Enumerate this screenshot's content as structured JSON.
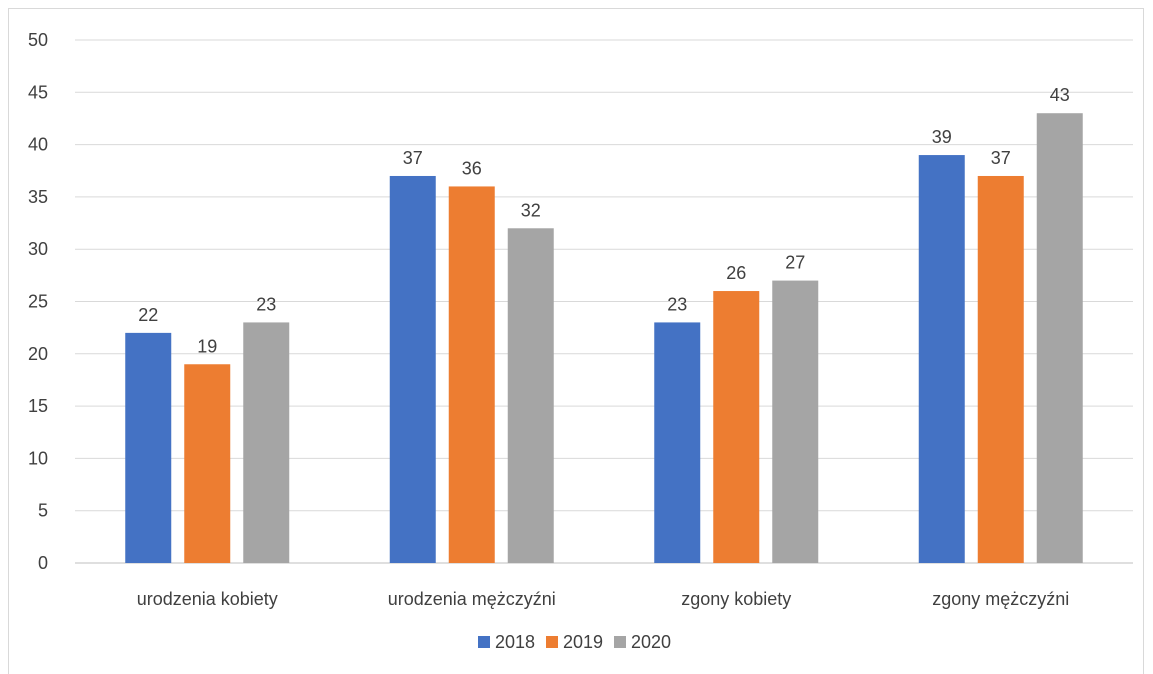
{
  "chart_data": {
    "type": "bar",
    "title": "",
    "xlabel": "",
    "ylabel": "",
    "categories": [
      "urodzenia kobiety",
      "urodzenia mężczyźni",
      "zgony kobiety",
      "zgony mężczyźni"
    ],
    "series": [
      {
        "name": "2018",
        "color": "#4472c4",
        "values": [
          22,
          37,
          23,
          39
        ]
      },
      {
        "name": "2019",
        "color": "#ed7d31",
        "values": [
          19,
          36,
          26,
          37
        ]
      },
      {
        "name": "2020",
        "color": "#a5a5a5",
        "values": [
          23,
          32,
          27,
          43
        ]
      }
    ],
    "ylim": [
      0,
      50
    ],
    "yticks": [
      0,
      5,
      10,
      15,
      20,
      25,
      30,
      35,
      40,
      45,
      50
    ],
    "grid": true,
    "data_labels": true,
    "legend_position": "bottom"
  }
}
